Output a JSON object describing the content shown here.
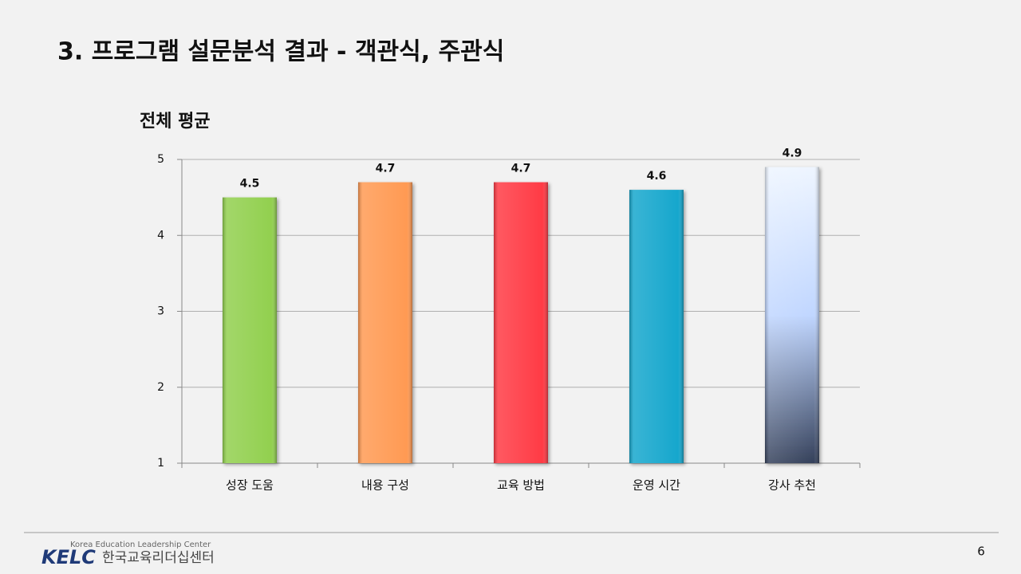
{
  "slide": {
    "title": "3.  프로그램 설문분석 결과 - 객관식, 주관식",
    "page_number": "6",
    "logo": {
      "mark": "KELC",
      "english": "Korea Education Leadership Center",
      "korean": "한국교육리더십센터"
    }
  },
  "chart_data": {
    "type": "bar",
    "title": "전체 평균",
    "categories": [
      "성장 도움",
      "내용 구성",
      "교육 방법",
      "운영 시간",
      "강사 추천"
    ],
    "values": [
      4.5,
      4.7,
      4.7,
      4.6,
      4.9
    ],
    "colors": [
      "#92d050",
      "#ff9a52",
      "#ff3a45",
      "#17a7cd",
      [
        "#eef5ff",
        "#c0d6ff",
        "#34405a"
      ]
    ],
    "ylim": [
      1,
      5
    ],
    "yticks": [
      1,
      2,
      3,
      4,
      5
    ],
    "grid": true
  }
}
